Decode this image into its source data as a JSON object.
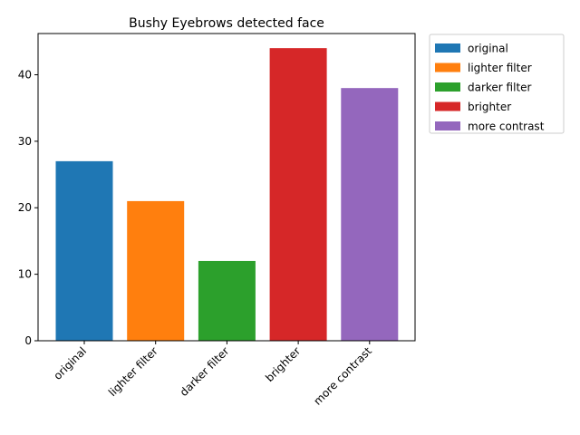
{
  "chart_data": {
    "type": "bar",
    "title": "Bushy Eyebrows detected face",
    "xlabel": "",
    "ylabel": "",
    "categories": [
      "original",
      "lighter filter",
      "darker filter",
      "brighter",
      "more contrast"
    ],
    "values": [
      27,
      21,
      12,
      44,
      38
    ],
    "colors": [
      "#1f77b4",
      "#ff7f0e",
      "#2ca02c",
      "#d62728",
      "#9467bd"
    ],
    "ylim": [
      0,
      46.2
    ],
    "yticks": [
      0,
      10,
      20,
      30,
      40
    ],
    "grid": false,
    "legend": {
      "placement": "outside-top-right",
      "entries": [
        "original",
        "lighter filter",
        "darker filter",
        "brighter",
        "more contrast"
      ]
    }
  }
}
